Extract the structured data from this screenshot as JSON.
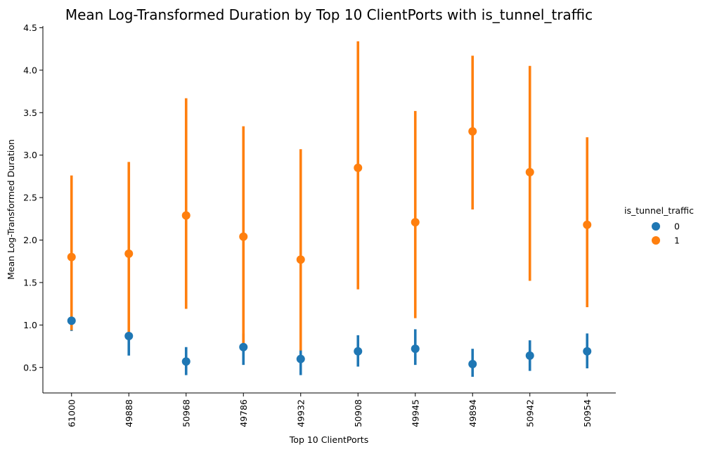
{
  "chart_data": {
    "type": "pointplot",
    "title": "Mean Log-Transformed Duration by Top 10 ClientPorts with is_tunnel_traffic",
    "xlabel": "Top 10 ClientPorts",
    "ylabel": "Mean Log-Transformed Duration",
    "categories": [
      "61000",
      "49888",
      "50968",
      "49786",
      "49932",
      "50908",
      "49945",
      "49894",
      "50942",
      "50954"
    ],
    "ylim": [
      0.2,
      4.52
    ],
    "yticks": [
      "0.5",
      "1.0",
      "1.5",
      "2.0",
      "2.5",
      "3.0",
      "3.5",
      "4.0",
      "4.5"
    ],
    "legend": {
      "title": "is_tunnel_traffic",
      "position": "right"
    },
    "series": [
      {
        "name": "0",
        "color": "#1f77b4",
        "values": [
          1.05,
          0.87,
          0.57,
          0.74,
          0.6,
          0.69,
          0.72,
          0.54,
          0.64,
          0.69
        ],
        "ci_low": [
          0.93,
          0.64,
          0.41,
          0.53,
          0.41,
          0.51,
          0.53,
          0.39,
          0.46,
          0.49
        ],
        "ci_high": [
          1.05,
          0.87,
          0.74,
          0.9,
          0.71,
          0.88,
          0.95,
          0.72,
          0.82,
          0.9
        ]
      },
      {
        "name": "1",
        "color": "#ff7f0e",
        "values": [
          1.8,
          1.84,
          2.29,
          2.04,
          1.77,
          2.85,
          2.21,
          3.28,
          2.8,
          2.18
        ],
        "ci_low": [
          0.94,
          0.87,
          1.19,
          0.75,
          0.7,
          1.42,
          1.08,
          2.36,
          1.52,
          1.21
        ],
        "ci_high": [
          2.76,
          2.92,
          3.67,
          3.34,
          3.07,
          4.34,
          3.52,
          4.17,
          4.05,
          3.21
        ]
      }
    ]
  }
}
